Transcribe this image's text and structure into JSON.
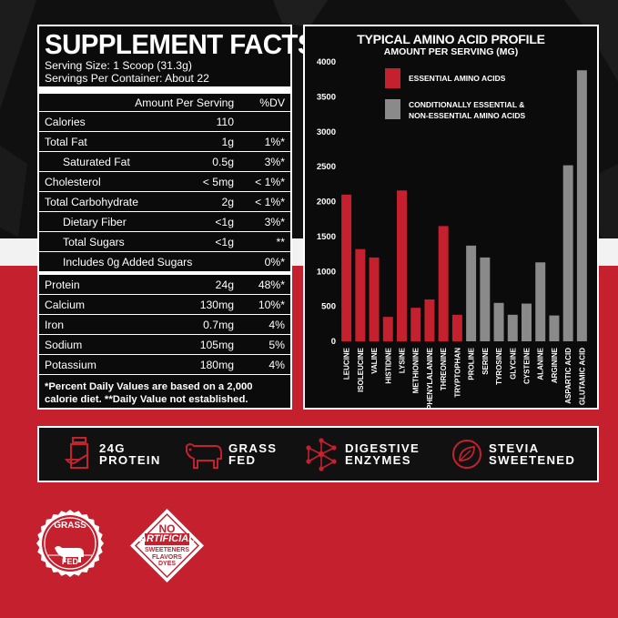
{
  "facts": {
    "title": "SUPPLEMENT FACTS",
    "serving_size": "Serving Size: 1 Scoop (31.3g)",
    "servings_per_container": "Servings Per Container: About 22",
    "header_amount": "Amount Per Serving",
    "header_dv": "%DV",
    "rows": [
      {
        "label": "Calories",
        "value": "110",
        "dv": ""
      },
      {
        "label": "Total Fat",
        "value": "1g",
        "dv": "1%*"
      },
      {
        "label": "Saturated Fat",
        "value": "0.5g",
        "dv": "3%*"
      },
      {
        "label": "Cholesterol",
        "value": "< 5mg",
        "dv": "< 1%*"
      },
      {
        "label": "Total Carbohydrate",
        "value": "2g",
        "dv": "< 1%*"
      },
      {
        "label": "Dietary Fiber",
        "value": "<1g",
        "dv": "3%*"
      },
      {
        "label": "Total Sugars",
        "value": "<1g",
        "dv": "**"
      },
      {
        "label": "Includes 0g Added Sugars",
        "value": "",
        "dv": "0%*"
      },
      {
        "label": "Protein",
        "value": "24g",
        "dv": "48%*"
      },
      {
        "label": "Calcium",
        "value": "130mg",
        "dv": "10%*"
      },
      {
        "label": "Iron",
        "value": "0.7mg",
        "dv": "4%"
      },
      {
        "label": "Sodium",
        "value": "105mg",
        "dv": "5%"
      },
      {
        "label": "Potassium",
        "value": "180mg",
        "dv": "4%"
      }
    ],
    "footnote_line1": "*Percent Daily Values are based on a 2,000",
    "footnote_line2": "calorie diet. **Daily Value not established."
  },
  "chart_data": {
    "type": "bar",
    "title": "TYPICAL AMINO ACID PROFILE",
    "subtitle": "AMOUNT PER SERVING (MG)",
    "ylim": [
      0,
      4000
    ],
    "yticks": [
      "0",
      "500",
      "1000",
      "1500",
      "2000",
      "2500",
      "3000",
      "3500",
      "4000"
    ],
    "grid": false,
    "legend_position": "top-left",
    "legend": [
      {
        "label": "ESSENTIAL AMINO ACIDS",
        "color": "#c4202e"
      },
      {
        "label_line1": "CONDITIONALLY ESSENTIAL &",
        "label_line2": "NON-ESSENTIAL AMINO ACIDS",
        "color": "#8a8a8a"
      }
    ],
    "categories": [
      "LEUCINE",
      "ISOLEUCINE",
      "VALINE",
      "HISTIDINE",
      "LYSINE",
      "METHIONINE",
      "PHENYLALANINE",
      "THREONINE",
      "TRYPTOPHAN",
      "PROLINE",
      "SERINE",
      "TYROSINE",
      "GLYCINE",
      "CYSTEINE",
      "ALANINE",
      "ARGININE",
      "ASPARTIC ACID",
      "GLUTAMIC ACID"
    ],
    "values": [
      2100,
      1320,
      1200,
      350,
      2160,
      480,
      600,
      1650,
      380,
      1370,
      1200,
      550,
      380,
      540,
      1130,
      370,
      2520,
      3880
    ],
    "groups": [
      "essential",
      "essential",
      "essential",
      "essential",
      "essential",
      "essential",
      "essential",
      "essential",
      "essential",
      "nonessential",
      "nonessential",
      "nonessential",
      "nonessential",
      "nonessential",
      "nonessential",
      "nonessential",
      "nonessential",
      "nonessential"
    ],
    "colors": {
      "essential": "#c4202e",
      "nonessential": "#8a8a8a"
    }
  },
  "features": [
    {
      "icon": "protein-scoop-icon",
      "line1": "24G",
      "line2": "PROTEIN"
    },
    {
      "icon": "cow-icon",
      "line1": "GRASS",
      "line2": "FED"
    },
    {
      "icon": "molecule-icon",
      "line1": "DIGESTIVE",
      "line2": "ENZYMES"
    },
    {
      "icon": "stevia-leaf-icon",
      "line1": "STEVIA",
      "line2": "SWEETENED"
    }
  ],
  "badges": {
    "grass_fed": {
      "line1": "GRASS",
      "line2": "FED"
    },
    "no_artificial": {
      "line1": "NO",
      "line2": "ARTIFICIAL",
      "line3": "SWEETENERS",
      "line4": "FLAVORS",
      "line5": "DYES"
    }
  }
}
